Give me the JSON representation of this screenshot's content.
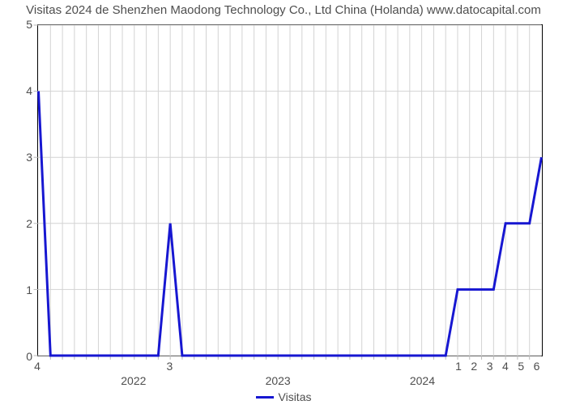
{
  "chart": {
    "type": "line",
    "title": "Visitas 2024 de Shenzhen Maodong Technology Co., Ltd China (Holanda) www.datocapital.com",
    "title_fontsize": 15,
    "title_color": "#4e4e4e",
    "background_color": "#ffffff",
    "plot_border_color": "#000000",
    "grid_color": "#d3d3d3",
    "tick_color": "#b9b9b9",
    "tick_label_color": "#4e4e4e",
    "tick_label_fontsize": 14,
    "legend": {
      "label": "Visitas",
      "position": "bottom-center"
    },
    "y_axis": {
      "min": 0,
      "max": 5,
      "ticks": [
        0,
        1,
        2,
        3,
        4,
        5
      ],
      "grid": true
    },
    "x_axis": {
      "min": 0,
      "max": 42,
      "minor_count": 42,
      "major_ticks": [
        {
          "pos": 8,
          "label": "2022"
        },
        {
          "pos": 20,
          "label": "2023"
        },
        {
          "pos": 32,
          "label": "2024"
        }
      ],
      "inline_labels": [
        {
          "pos": 0,
          "text": "4"
        },
        {
          "pos": 11,
          "text": "3"
        },
        {
          "pos": 35,
          "text": "1"
        },
        {
          "pos": 36.3,
          "text": "2"
        },
        {
          "pos": 37.6,
          "text": "3"
        },
        {
          "pos": 38.9,
          "text": "4"
        },
        {
          "pos": 40.2,
          "text": "5"
        },
        {
          "pos": 41.5,
          "text": "6"
        }
      ]
    },
    "series": [
      {
        "name": "Visitas",
        "color": "#1717d1",
        "line_width": 3,
        "points": [
          [
            0,
            4
          ],
          [
            1,
            0
          ],
          [
            2,
            0
          ],
          [
            3,
            0
          ],
          [
            4,
            0
          ],
          [
            5,
            0
          ],
          [
            6,
            0
          ],
          [
            7,
            0
          ],
          [
            8,
            0
          ],
          [
            9,
            0
          ],
          [
            10,
            0
          ],
          [
            11,
            2
          ],
          [
            12,
            0
          ],
          [
            13,
            0
          ],
          [
            14,
            0
          ],
          [
            15,
            0
          ],
          [
            16,
            0
          ],
          [
            17,
            0
          ],
          [
            18,
            0
          ],
          [
            19,
            0
          ],
          [
            20,
            0
          ],
          [
            21,
            0
          ],
          [
            22,
            0
          ],
          [
            23,
            0
          ],
          [
            24,
            0
          ],
          [
            25,
            0
          ],
          [
            26,
            0
          ],
          [
            27,
            0
          ],
          [
            28,
            0
          ],
          [
            29,
            0
          ],
          [
            30,
            0
          ],
          [
            31,
            0
          ],
          [
            32,
            0
          ],
          [
            33,
            0
          ],
          [
            34,
            0
          ],
          [
            35,
            1
          ],
          [
            36,
            1
          ],
          [
            37,
            1
          ],
          [
            38,
            1
          ],
          [
            39,
            2
          ],
          [
            40,
            2
          ],
          [
            41,
            2
          ],
          [
            42,
            3
          ]
        ]
      }
    ]
  }
}
